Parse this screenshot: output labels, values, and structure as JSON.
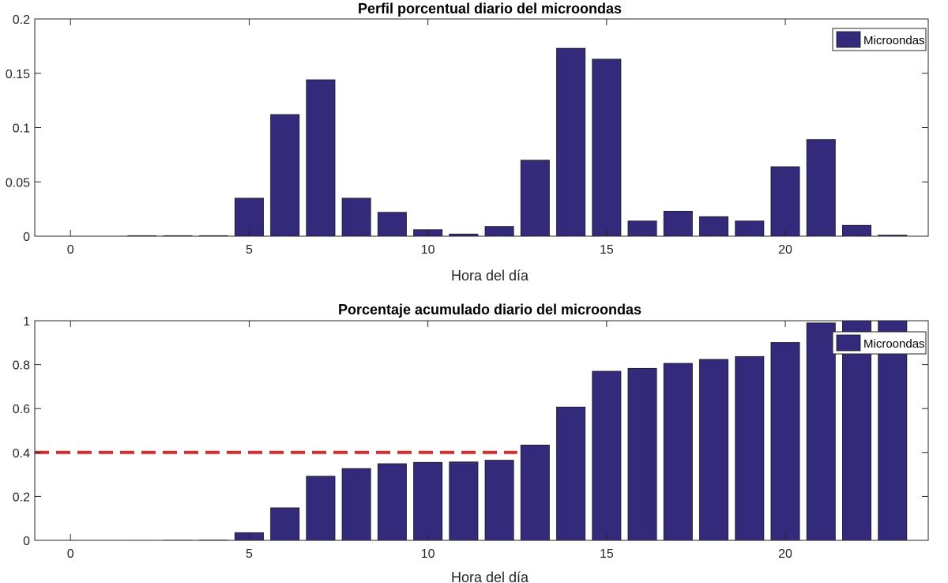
{
  "chart_data": [
    {
      "type": "bar",
      "title": "Perfil porcentual diario del microondas",
      "xlabel": "Hora del día",
      "ylabel": "",
      "x": [
        0,
        1,
        2,
        3,
        4,
        5,
        6,
        7,
        8,
        9,
        10,
        11,
        12,
        13,
        14,
        15,
        16,
        17,
        18,
        19,
        20,
        21,
        22,
        23
      ],
      "series": [
        {
          "name": "Microondas",
          "color": "#332a7c",
          "values": [
            0,
            0,
            0.0005,
            0.0005,
            0.0005,
            0.035,
            0.112,
            0.144,
            0.035,
            0.022,
            0.006,
            0.002,
            0.009,
            0.07,
            0.173,
            0.163,
            0.014,
            0.023,
            0.018,
            0.014,
            0.064,
            0.089,
            0.01,
            0.001
          ]
        }
      ],
      "xlim": [
        -1,
        24
      ],
      "ylim": [
        0,
        0.2
      ],
      "xticks": [
        0,
        5,
        10,
        15,
        20
      ],
      "yticks": [
        0,
        0.05,
        0.1,
        0.15,
        0.2
      ],
      "ytick_labels": [
        "0",
        "0.05",
        "0.1",
        "0.15",
        "0.2"
      ],
      "legend_position": "top-right",
      "grid": false
    },
    {
      "type": "bar",
      "title": "Porcentaje acumulado diario del microondas",
      "xlabel": "Hora del día",
      "ylabel": "",
      "x": [
        0,
        1,
        2,
        3,
        4,
        5,
        6,
        7,
        8,
        9,
        10,
        11,
        12,
        13,
        14,
        15,
        16,
        17,
        18,
        19,
        20,
        21,
        22,
        23
      ],
      "series": [
        {
          "name": "Microondas",
          "color": "#332a7c",
          "values": [
            0,
            0,
            0.0005,
            0.001,
            0.0015,
            0.035,
            0.148,
            0.292,
            0.327,
            0.349,
            0.355,
            0.357,
            0.365,
            0.434,
            0.607,
            0.77,
            0.783,
            0.806,
            0.824,
            0.837,
            0.901,
            0.99,
            1.0,
            1.0
          ]
        }
      ],
      "reference_line": {
        "y": 0.4,
        "x_range": [
          -1,
          12.5
        ],
        "color": "#d32f2f",
        "style": "dashed"
      },
      "xlim": [
        -1,
        24
      ],
      "ylim": [
        0,
        1
      ],
      "xticks": [
        0,
        5,
        10,
        15,
        20
      ],
      "yticks": [
        0,
        0.2,
        0.4,
        0.6,
        0.8,
        1
      ],
      "ytick_labels": [
        "0",
        "0.2",
        "0.4",
        "0.6",
        "0.8",
        "1"
      ],
      "legend_position": "top-right",
      "grid": false
    }
  ]
}
